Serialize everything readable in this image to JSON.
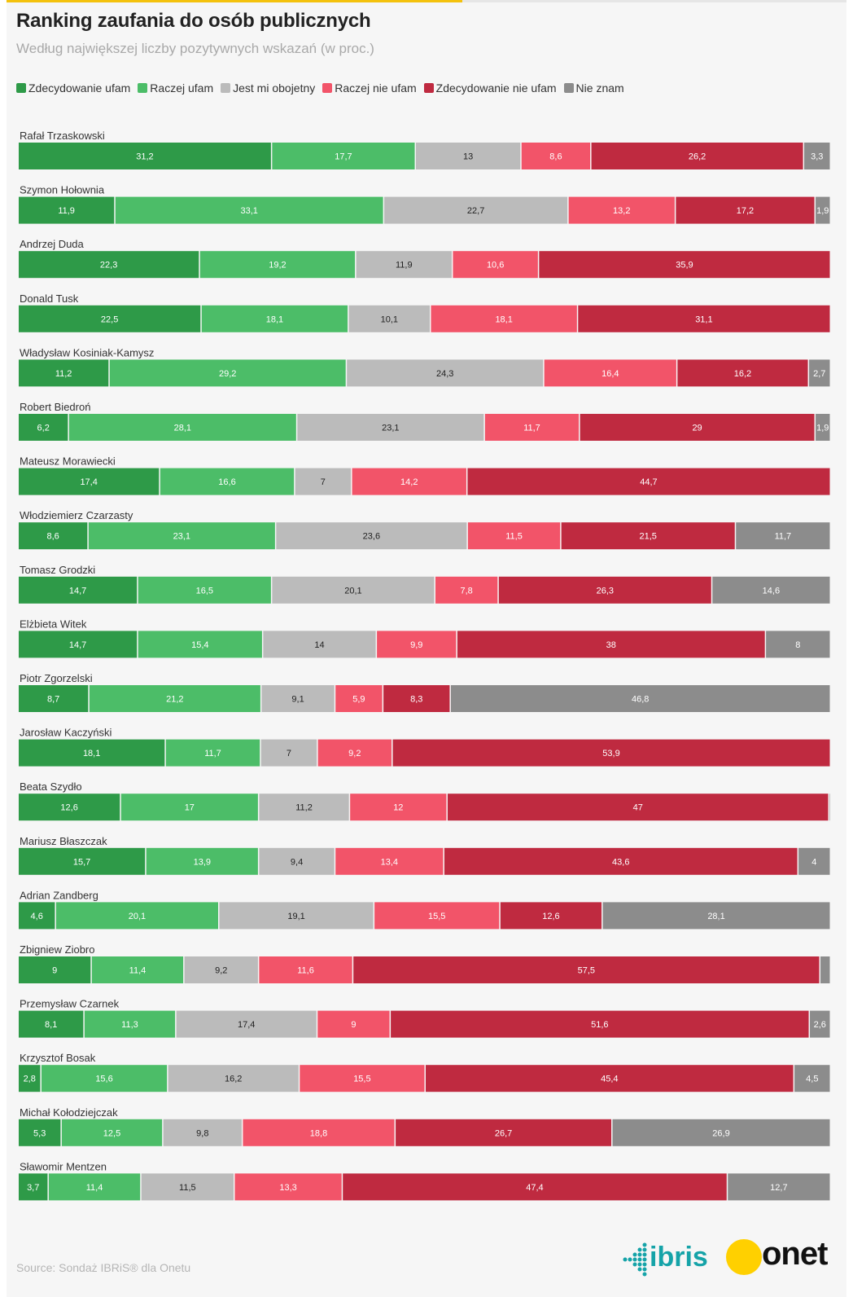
{
  "title": "Ranking zaufania do osób publicznych",
  "subtitle": "Według największej liczby pozytywnych wskazań (w proc.)",
  "source": "Source: Sondaż IBRiS® dla Onetu",
  "logos": {
    "ibris": "ibris",
    "onet": "onet"
  },
  "colors": {
    "zdecydowanie_ufam": "#2e9a48",
    "raczej_ufam": "#4cbd68",
    "obojetny": "#bbbbbb",
    "raczej_nie_ufam": "#f25469",
    "zdecydowanie_nie_ufam": "#bf2a40",
    "nie_znam": "#8c8c8c"
  },
  "chart_data": {
    "type": "bar",
    "orientation": "horizontal",
    "stacked": true,
    "normalized": true,
    "series": [
      {
        "name": "Zdecydowanie ufam",
        "color": "#2e9a48",
        "label_color": "#ffffff"
      },
      {
        "name": "Raczej ufam",
        "color": "#4cbd68",
        "label_color": "#ffffff"
      },
      {
        "name": "Jest mi obojetny",
        "color": "#bbbbbb",
        "label_color": "#222222"
      },
      {
        "name": "Raczej nie ufam",
        "color": "#f25469",
        "label_color": "#ffffff"
      },
      {
        "name": "Zdecydowanie nie ufam",
        "color": "#bf2a40",
        "label_color": "#ffffff"
      },
      {
        "name": "Nie znam",
        "color": "#8c8c8c",
        "label_color": "#ffffff"
      }
    ],
    "rows": [
      {
        "name": "Rafał Trzaskowski",
        "values": [
          31.2,
          17.7,
          13,
          8.6,
          26.2,
          3.3
        ],
        "labels": [
          "31,2",
          "17,7",
          "13",
          "8,6",
          "26,2",
          "3,3"
        ]
      },
      {
        "name": "Szymon Hołownia",
        "values": [
          11.9,
          33.1,
          22.7,
          13.2,
          17.2,
          1.9
        ],
        "labels": [
          "11,9",
          "33,1",
          "22,7",
          "13,2",
          "17,2",
          "1,9"
        ]
      },
      {
        "name": "Andrzej Duda",
        "values": [
          22.3,
          19.2,
          11.9,
          10.6,
          35.9,
          0
        ],
        "labels": [
          "22,3",
          "19,2",
          "11,9",
          "10,6",
          "35,9",
          ""
        ]
      },
      {
        "name": "Donald Tusk",
        "values": [
          22.5,
          18.1,
          10.1,
          18.1,
          31.1,
          0
        ],
        "labels": [
          "22,5",
          "18,1",
          "10,1",
          "18,1",
          "31,1",
          ""
        ]
      },
      {
        "name": "Władysław Kosiniak-Kamysz",
        "values": [
          11.2,
          29.2,
          24.3,
          16.4,
          16.2,
          2.7
        ],
        "labels": [
          "11,2",
          "29,2",
          "24,3",
          "16,4",
          "16,2",
          "2,7"
        ]
      },
      {
        "name": "Robert Biedroń",
        "values": [
          6.2,
          28.1,
          23.1,
          11.7,
          29,
          1.9
        ],
        "labels": [
          "6,2",
          "28,1",
          "23,1",
          "11,7",
          "29",
          "1,9"
        ]
      },
      {
        "name": "Mateusz Morawiecki",
        "values": [
          17.4,
          16.6,
          7,
          14.2,
          44.7,
          0
        ],
        "labels": [
          "17,4",
          "16,6",
          "7",
          "14,2",
          "44,7",
          ""
        ]
      },
      {
        "name": "Włodziemierz Czarzasty",
        "values": [
          8.6,
          23.1,
          23.6,
          11.5,
          21.5,
          11.7
        ],
        "labels": [
          "8,6",
          "23,1",
          "23,6",
          "11,5",
          "21,5",
          "11,7"
        ]
      },
      {
        "name": "Tomasz Grodzki",
        "values": [
          14.7,
          16.5,
          20.1,
          7.8,
          26.3,
          14.6
        ],
        "labels": [
          "14,7",
          "16,5",
          "20,1",
          "7,8",
          "26,3",
          "14,6"
        ]
      },
      {
        "name": "Elżbieta Witek",
        "values": [
          14.7,
          15.4,
          14,
          9.9,
          38,
          8
        ],
        "labels": [
          "14,7",
          "15,4",
          "14",
          "9,9",
          "38",
          "8"
        ]
      },
      {
        "name": "Piotr Zgorzelski",
        "values": [
          8.7,
          21.2,
          9.1,
          5.9,
          8.3,
          46.8
        ],
        "labels": [
          "8,7",
          "21,2",
          "9,1",
          "5,9",
          "8,3",
          "46,8"
        ]
      },
      {
        "name": "Jarosław Kaczyński",
        "values": [
          18.1,
          11.7,
          7,
          9.2,
          53.9,
          0
        ],
        "labels": [
          "18,1",
          "11,7",
          "7",
          "9,2",
          "53,9",
          ""
        ]
      },
      {
        "name": "Beata Szydło",
        "values": [
          12.6,
          17,
          11.2,
          12,
          47,
          0.2
        ],
        "labels": [
          "12,6",
          "17",
          "11,2",
          "12",
          "47",
          ""
        ]
      },
      {
        "name": "Mariusz Błaszczak",
        "values": [
          15.7,
          13.9,
          9.4,
          13.4,
          43.6,
          4
        ],
        "labels": [
          "15,7",
          "13,9",
          "9,4",
          "13,4",
          "43,6",
          "4"
        ]
      },
      {
        "name": "Adrian Zandberg",
        "values": [
          4.6,
          20.1,
          19.1,
          15.5,
          12.6,
          28.1
        ],
        "labels": [
          "4,6",
          "20,1",
          "19,1",
          "15,5",
          "12,6",
          "28,1"
        ]
      },
      {
        "name": "Zbigniew Ziobro",
        "values": [
          9,
          11.4,
          9.2,
          11.6,
          57.5,
          1.3
        ],
        "labels": [
          "9",
          "11,4",
          "9,2",
          "11,6",
          "57,5",
          ""
        ]
      },
      {
        "name": "Przemysław Czarnek",
        "values": [
          8.1,
          11.3,
          17.4,
          9,
          51.6,
          2.6
        ],
        "labels": [
          "8,1",
          "11,3",
          "17,4",
          "9",
          "51,6",
          "2,6"
        ]
      },
      {
        "name": "Krzysztof Bosak",
        "values": [
          2.8,
          15.6,
          16.2,
          15.5,
          45.4,
          4.5
        ],
        "labels": [
          "2,8",
          "15,6",
          "16,2",
          "15,5",
          "45,4",
          "4,5"
        ]
      },
      {
        "name": "Michał Kołodziejczak",
        "values": [
          5.3,
          12.5,
          9.8,
          18.8,
          26.7,
          26.9
        ],
        "labels": [
          "5,3",
          "12,5",
          "9,8",
          "18,8",
          "26,7",
          "26,9"
        ]
      },
      {
        "name": "Sławomir Mentzen",
        "values": [
          3.7,
          11.4,
          11.5,
          13.3,
          47.4,
          12.7
        ],
        "labels": [
          "3,7",
          "11,4",
          "11,5",
          "13,3",
          "47,4",
          "12,7"
        ]
      }
    ]
  }
}
